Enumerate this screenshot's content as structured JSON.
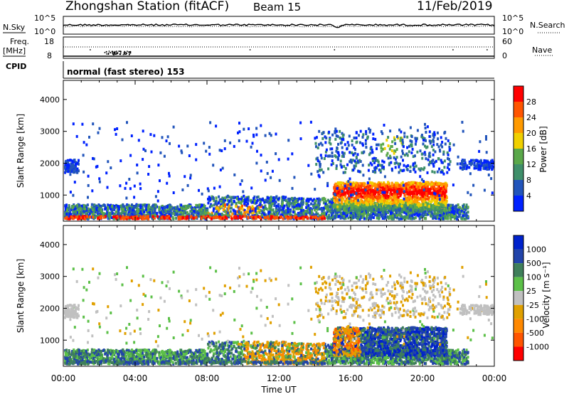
{
  "header": {
    "title": "Zhongshan Station (fitACF)",
    "beam": "Beam 15",
    "date": "11/Feb/2019"
  },
  "strip": {
    "nsky_label": "N.Sky",
    "nsearch_label": "N.Search",
    "freq_label_1": "Freq.",
    "freq_label_2": "[MHz]",
    "nave_label": "Nave",
    "cpid_label": "CPID",
    "cpid_text": "normal (fast stereo) 153",
    "noise_ticks_left": [
      "10^5",
      "10^0"
    ],
    "noise_ticks_right": [
      "10^5",
      "10^0"
    ],
    "freq_ticks": [
      "18",
      "8"
    ],
    "nave_ticks": [
      "60",
      "0"
    ]
  },
  "colors": {
    "power_scale": [
      "#0022ff",
      "#2255bb",
      "#3f8f6a",
      "#5aa84a",
      "#f0d000",
      "#ff9a00",
      "#ff5500",
      "#ff0000"
    ],
    "velocity_scale": [
      "#0022cc",
      "#2244aa",
      "#3f7f5a",
      "#5cc048",
      "#c0c0c0",
      "#e0a000",
      "#ff8800",
      "#ff5500",
      "#ff0000"
    ]
  },
  "chart_data": [
    {
      "type": "heatmap",
      "name": "power",
      "ylabel": "Slant Range [km]",
      "yticks": [
        1000,
        2000,
        3000,
        4000
      ],
      "ylim": [
        180,
        4600
      ],
      "xlabel": "Time UT",
      "xticks": [
        "00:00",
        "04:00",
        "08:00",
        "12:00",
        "16:00",
        "20:00",
        "00:00"
      ],
      "xlim_hours": [
        0,
        24
      ],
      "colorbar_label": "Power [dB]",
      "colorbar_ticks": [
        "4",
        "8",
        "12",
        "16",
        "20",
        "24",
        "28"
      ],
      "colorbar_range": [
        0,
        30
      ]
    },
    {
      "type": "heatmap",
      "name": "velocity",
      "ylabel": "Slant Range [km]",
      "yticks": [
        1000,
        2000,
        3000,
        4000
      ],
      "ylim": [
        180,
        4600
      ],
      "xlabel": "Time UT",
      "xticks": [
        "00:00",
        "04:00",
        "08:00",
        "12:00",
        "16:00",
        "20:00",
        "00:00"
      ],
      "xlim_hours": [
        0,
        24
      ],
      "colorbar_label": "Velocity [m s⁻¹]",
      "colorbar_ticks": [
        "1000",
        "500",
        "100",
        "25",
        "-25",
        "-100",
        "-500",
        "-1000"
      ]
    }
  ]
}
